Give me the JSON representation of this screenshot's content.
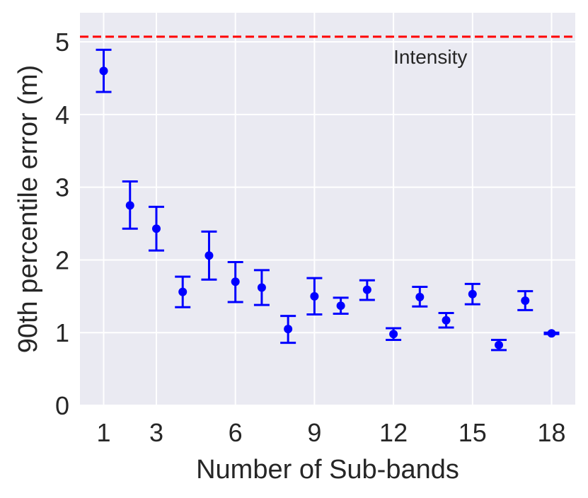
{
  "chart_data": {
    "type": "scatter",
    "xlabel": "Number of Sub-bands",
    "ylabel": "90th percentile error (m)",
    "xlim": [
      0.1,
      18.9
    ],
    "ylim": [
      0,
      5.4
    ],
    "xticks": [
      1,
      3,
      6,
      9,
      12,
      15,
      18
    ],
    "yticks": [
      0,
      1,
      2,
      3,
      4,
      5
    ],
    "grid": true,
    "series": [
      {
        "color": "#0000ff",
        "x": [
          1,
          2,
          3,
          4,
          5,
          6,
          7,
          8,
          9,
          10,
          11,
          12,
          13,
          14,
          15,
          16,
          17,
          18
        ],
        "y": [
          4.6,
          2.75,
          2.43,
          1.56,
          2.06,
          1.7,
          1.62,
          1.05,
          1.5,
          1.37,
          1.59,
          0.98,
          1.49,
          1.17,
          1.53,
          0.83,
          1.44,
          0.99
        ],
        "y_lower": [
          4.31,
          2.43,
          2.13,
          1.35,
          1.73,
          1.42,
          1.38,
          0.86,
          1.25,
          1.26,
          1.45,
          0.9,
          1.36,
          1.07,
          1.39,
          0.76,
          1.31,
          0.98
        ],
        "y_upper": [
          4.89,
          3.08,
          2.73,
          1.77,
          2.39,
          1.97,
          1.86,
          1.23,
          1.75,
          1.48,
          1.72,
          1.06,
          1.63,
          1.27,
          1.67,
          0.9,
          1.57,
          1.0
        ]
      }
    ],
    "reference_line": {
      "y": 5.07,
      "label": "Intensity",
      "color": "#ff0000",
      "style": "dashed"
    }
  }
}
